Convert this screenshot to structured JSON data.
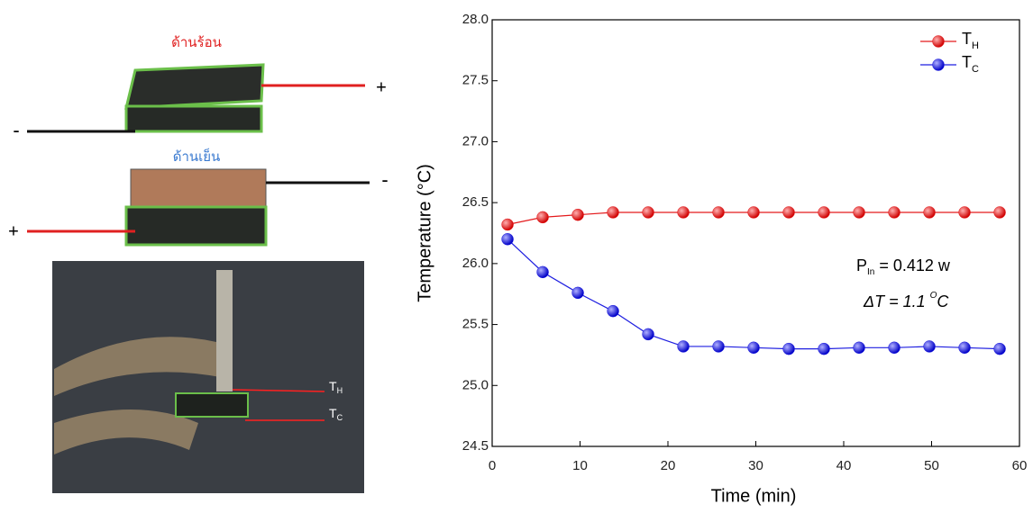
{
  "chart_data": {
    "type": "line",
    "xlabel": "Time (min)",
    "ylabel": "Temperature (°C)",
    "x": [
      1.75,
      5.75,
      9.75,
      13.75,
      17.75,
      21.75,
      25.75,
      29.75,
      33.75,
      37.75,
      41.75,
      45.75,
      49.75,
      53.75,
      57.75
    ],
    "series": [
      {
        "name": "TH",
        "color": "#e41a1c",
        "values": [
          26.32,
          26.38,
          26.4,
          26.42,
          26.42,
          26.42,
          26.42,
          26.42,
          26.42,
          26.42,
          26.42,
          26.42,
          26.42,
          26.42,
          26.42
        ]
      },
      {
        "name": "TC",
        "color": "#1f1fe0",
        "values": [
          26.2,
          25.93,
          25.76,
          25.61,
          25.42,
          25.32,
          25.32,
          25.31,
          25.3,
          25.3,
          25.31,
          25.31,
          25.32,
          25.31,
          25.3
        ]
      }
    ],
    "xlim": [
      0,
      60
    ],
    "xticks": [
      0,
      10,
      20,
      30,
      40,
      50,
      60
    ],
    "ylim": [
      24.5,
      28.0
    ],
    "yticks": [
      {
        "value": 24.5,
        "label": "24.5"
      },
      {
        "value": 25.0,
        "label": "25.0"
      },
      {
        "value": 25.5,
        "label": "25.5"
      },
      {
        "value": 26.0,
        "label": "26.0"
      },
      {
        "value": 26.5,
        "label": "26.5"
      },
      {
        "value": 27.0,
        "label": "27.0"
      },
      {
        "value": 27.5,
        "label": "27.5"
      },
      {
        "value": 28.0,
        "label": "28.0"
      }
    ],
    "legend": "upper right",
    "annotations": [
      [
        "P",
        "In",
        " = 0.412 w"
      ],
      [
        "ΔT = 1.1 ",
        "O",
        "C"
      ]
    ]
  },
  "figure_labels": {
    "hot_side": "ด้านร้อน",
    "cold_side": "ด้านเย็น",
    "plus": "+",
    "minus": "-",
    "photo_th": [
      "T",
      "H"
    ],
    "photo_tc": [
      "T",
      "C"
    ]
  }
}
